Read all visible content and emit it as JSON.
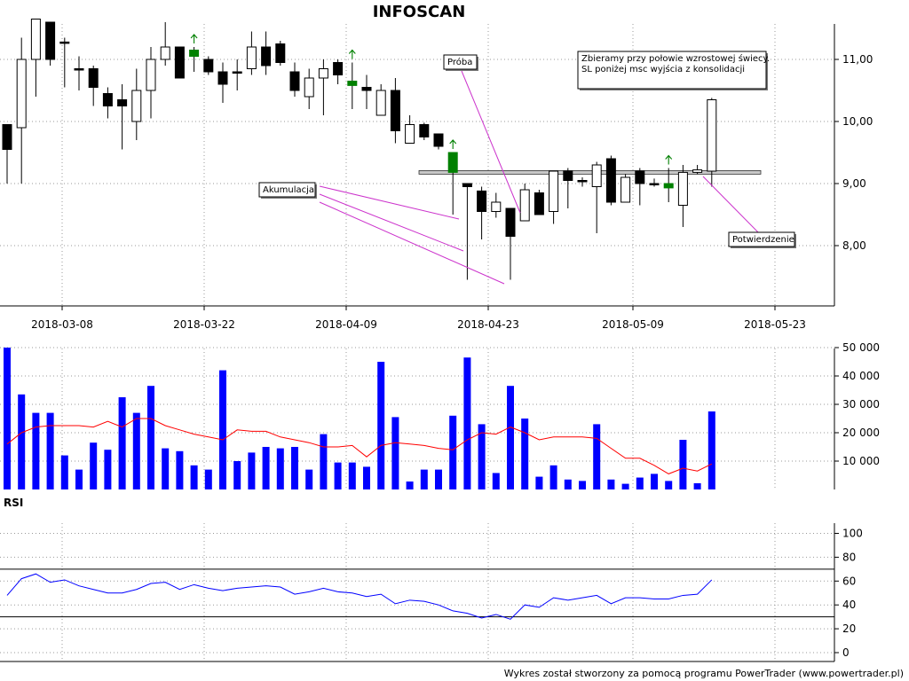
{
  "title": "INFOSCAN",
  "footer": "Wykres został stworzony za pomocą programu PowerTrader (www.powertrader.pl)",
  "colors": {
    "candle_up_fill": "#ffffff",
    "candle_down_fill": "#000000",
    "candle_green_fill": "#008000",
    "volume_bar": "#0000ff",
    "volume_ma": "#ff0000",
    "rsi_line": "#0000ff",
    "annotation_line": "#cc33cc",
    "signal_arrow": "#008000"
  },
  "chart_data": [
    {
      "type": "candlestick",
      "name": "price",
      "x_tick_labels": [
        "2018-03-08",
        "2018-03-22",
        "2018-04-09",
        "2018-04-23",
        "2018-05-09",
        "2018-05-23"
      ],
      "y_tick_labels": [
        "11,00",
        "10,00",
        "9,00",
        "8,00"
      ],
      "y_ticks": [
        11,
        10,
        9,
        8
      ],
      "ylim": [
        7.5,
        11.8
      ],
      "candles": [
        {
          "o": 9.55,
          "h": 9.95,
          "l": 9.0,
          "c": 9.95,
          "color": "black"
        },
        {
          "o": 9.9,
          "h": 11.35,
          "l": 9.0,
          "c": 11.0,
          "color": "white"
        },
        {
          "o": 11.0,
          "h": 11.65,
          "l": 10.4,
          "c": 11.65,
          "color": "white"
        },
        {
          "o": 11.6,
          "h": 11.6,
          "l": 10.9,
          "c": 11.0,
          "color": "black"
        },
        {
          "o": 11.28,
          "h": 11.35,
          "l": 10.55,
          "c": 11.28,
          "color": "black"
        },
        {
          "o": 10.85,
          "h": 11.05,
          "l": 10.5,
          "c": 10.85,
          "color": "black"
        },
        {
          "o": 10.85,
          "h": 10.9,
          "l": 10.25,
          "c": 10.55,
          "color": "black"
        },
        {
          "o": 10.45,
          "h": 10.55,
          "l": 10.05,
          "c": 10.25,
          "color": "black"
        },
        {
          "o": 10.35,
          "h": 10.6,
          "l": 9.55,
          "c": 10.25,
          "color": "black"
        },
        {
          "o": 10.0,
          "h": 10.85,
          "l": 9.7,
          "c": 10.5,
          "color": "white"
        },
        {
          "o": 10.5,
          "h": 11.2,
          "l": 10.05,
          "c": 11.0,
          "color": "white"
        },
        {
          "o": 11.0,
          "h": 11.6,
          "l": 10.9,
          "c": 11.2,
          "color": "white"
        },
        {
          "o": 11.2,
          "h": 11.2,
          "l": 10.7,
          "c": 10.7,
          "color": "black"
        },
        {
          "o": 11.15,
          "h": 11.2,
          "l": 10.8,
          "c": 11.05,
          "color": "green",
          "arrow": true
        },
        {
          "o": 11.0,
          "h": 11.05,
          "l": 10.75,
          "c": 10.8,
          "color": "black"
        },
        {
          "o": 10.8,
          "h": 10.95,
          "l": 10.3,
          "c": 10.6,
          "color": "black"
        },
        {
          "o": 10.8,
          "h": 11.0,
          "l": 10.5,
          "c": 10.8,
          "color": "black"
        },
        {
          "o": 10.85,
          "h": 11.45,
          "l": 10.75,
          "c": 11.2,
          "color": "white"
        },
        {
          "o": 11.2,
          "h": 11.45,
          "l": 10.75,
          "c": 10.9,
          "color": "black"
        },
        {
          "o": 11.25,
          "h": 11.3,
          "l": 10.9,
          "c": 10.95,
          "color": "black"
        },
        {
          "o": 10.8,
          "h": 10.95,
          "l": 10.4,
          "c": 10.5,
          "color": "black"
        },
        {
          "o": 10.4,
          "h": 10.85,
          "l": 10.2,
          "c": 10.7,
          "color": "white"
        },
        {
          "o": 10.7,
          "h": 11.0,
          "l": 10.1,
          "c": 10.85,
          "color": "white"
        },
        {
          "o": 10.95,
          "h": 11.0,
          "l": 10.6,
          "c": 10.75,
          "color": "black"
        },
        {
          "o": 10.65,
          "h": 10.95,
          "l": 10.2,
          "c": 10.58,
          "color": "green",
          "arrow": true
        },
        {
          "o": 10.55,
          "h": 10.75,
          "l": 10.2,
          "c": 10.5,
          "color": "black"
        },
        {
          "o": 10.1,
          "h": 10.6,
          "l": 10.1,
          "c": 10.5,
          "color": "white"
        },
        {
          "o": 10.5,
          "h": 10.7,
          "l": 9.65,
          "c": 9.85,
          "color": "black"
        },
        {
          "o": 9.65,
          "h": 10.1,
          "l": 9.65,
          "c": 9.95,
          "color": "white"
        },
        {
          "o": 9.95,
          "h": 9.98,
          "l": 9.7,
          "c": 9.75,
          "color": "black"
        },
        {
          "o": 9.8,
          "h": 9.8,
          "l": 9.55,
          "c": 9.6,
          "color": "black"
        },
        {
          "o": 9.5,
          "h": 9.5,
          "l": 8.5,
          "c": 9.18,
          "color": "green",
          "arrow": true
        },
        {
          "o": 9.0,
          "h": 9.0,
          "l": 7.45,
          "c": 8.95,
          "color": "black"
        },
        {
          "o": 8.88,
          "h": 8.95,
          "l": 8.1,
          "c": 8.55,
          "color": "black"
        },
        {
          "o": 8.7,
          "h": 8.85,
          "l": 8.45,
          "c": 8.55,
          "color": "white"
        },
        {
          "o": 8.6,
          "h": 8.6,
          "l": 7.45,
          "c": 8.15,
          "color": "black"
        },
        {
          "o": 8.4,
          "h": 9.0,
          "l": 8.4,
          "c": 8.9,
          "color": "white"
        },
        {
          "o": 8.85,
          "h": 8.9,
          "l": 8.5,
          "c": 8.5,
          "color": "black"
        },
        {
          "o": 8.55,
          "h": 9.2,
          "l": 8.35,
          "c": 9.2,
          "color": "white"
        },
        {
          "o": 9.2,
          "h": 9.25,
          "l": 8.6,
          "c": 9.05,
          "color": "black"
        },
        {
          "o": 9.05,
          "h": 9.1,
          "l": 8.95,
          "c": 9.05,
          "color": "black"
        },
        {
          "o": 8.95,
          "h": 9.35,
          "l": 8.2,
          "c": 9.3,
          "color": "white"
        },
        {
          "o": 9.4,
          "h": 9.45,
          "l": 8.65,
          "c": 8.7,
          "color": "black"
        },
        {
          "o": 8.7,
          "h": 9.15,
          "l": 8.7,
          "c": 9.1,
          "color": "white"
        },
        {
          "o": 9.2,
          "h": 9.25,
          "l": 8.65,
          "c": 9.0,
          "color": "black"
        },
        {
          "o": 9.0,
          "h": 9.08,
          "l": 8.95,
          "c": 9.0,
          "color": "black"
        },
        {
          "o": 9.0,
          "h": 9.25,
          "l": 8.7,
          "c": 8.93,
          "color": "green",
          "arrow": true
        },
        {
          "o": 8.65,
          "h": 9.3,
          "l": 8.3,
          "c": 9.18,
          "color": "white"
        },
        {
          "o": 9.18,
          "h": 9.3,
          "l": 9.15,
          "c": 9.22,
          "color": "white"
        },
        {
          "o": 9.2,
          "h": 10.38,
          "l": 8.95,
          "c": 10.35,
          "color": "white"
        }
      ],
      "support_level": 9.18,
      "annotations": [
        {
          "text": "Akumulacja"
        },
        {
          "text": "Próba"
        },
        {
          "text": "Potwierdzenie"
        },
        {
          "text": "Zbieramy przy połowie wzrostowej świecy.",
          "text2": "SL poniżej msc wyjścia z konsolidacji"
        }
      ]
    },
    {
      "type": "bar",
      "name": "volume",
      "y_tick_labels": [
        "50 000",
        "40 000",
        "30 000",
        "20 000",
        "10 000"
      ],
      "y_ticks": [
        50000,
        40000,
        30000,
        20000,
        10000
      ],
      "ylim": [
        0,
        51000
      ],
      "values": [
        50000,
        33500,
        27000,
        27000,
        12000,
        7000,
        16500,
        14000,
        32500,
        27000,
        36500,
        14500,
        13500,
        8500,
        7000,
        42000,
        10000,
        13000,
        15000,
        14500,
        15000,
        7000,
        19500,
        9500,
        9500,
        8000,
        45000,
        25500,
        2800,
        7000,
        7000,
        26000,
        46500,
        23000,
        5800,
        36500,
        25000,
        4500,
        8500,
        3500,
        3000,
        23000,
        3500,
        2000,
        4200,
        5500,
        3000,
        17500,
        2200,
        27500
      ],
      "moving_average": [
        16000,
        20000,
        22000,
        22500,
        22500,
        22500,
        22000,
        24000,
        22000,
        25000,
        25000,
        22500,
        21000,
        19500,
        18500,
        17500,
        21000,
        20500,
        20500,
        18500,
        17500,
        16500,
        15000,
        15000,
        15500,
        11500,
        15500,
        16500,
        16000,
        15500,
        14500,
        14000,
        17500,
        20000,
        19500,
        22000,
        20000,
        17500,
        18500,
        18500,
        18500,
        18000,
        14500,
        11000,
        11000,
        8500,
        5500,
        7500,
        6500,
        9000
      ]
    },
    {
      "type": "line",
      "name": "RSI",
      "label": "RSI",
      "y_tick_labels": [
        "100",
        "80",
        "60",
        "40",
        "20",
        "0"
      ],
      "y_ticks": [
        100,
        80,
        60,
        40,
        20,
        0
      ],
      "ylim": [
        0,
        100
      ],
      "levels": [
        70,
        30
      ],
      "values": [
        48,
        62,
        66,
        59,
        61,
        56,
        53,
        50,
        50,
        53,
        58,
        59,
        53,
        57,
        54,
        52,
        54,
        55,
        56,
        55,
        49,
        51,
        54,
        51,
        50,
        47,
        49,
        41,
        44,
        43,
        40,
        35,
        33,
        29,
        32,
        28,
        40,
        38,
        46,
        44,
        46,
        48,
        41,
        46,
        46,
        45,
        45,
        48,
        49,
        61
      ]
    }
  ]
}
